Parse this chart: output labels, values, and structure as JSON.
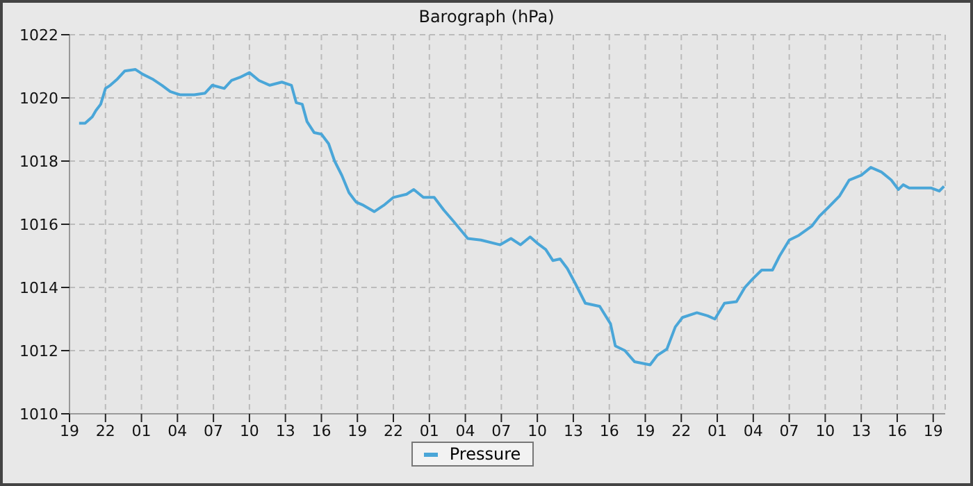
{
  "chart_data": {
    "type": "line",
    "title": "Barograph (hPa)",
    "x": [
      "--01-01T19:48",
      "--01-01T20:18",
      "--01-01T20:54",
      "--01-01T21:12",
      "--01-01T21:36",
      "--01-01T22:00",
      "--01-01T22:24",
      "--01-01T23:00",
      "--01-01T23:36",
      "--01-02T00:30",
      "--01-02T01:06",
      "--01-02T01:54",
      "--01-02T02:42",
      "--01-02T03:24",
      "--01-02T04:12",
      "--01-02T05:24",
      "--01-02T06:18",
      "--01-02T06:54",
      "--01-02T07:54",
      "--01-02T08:30",
      "--01-02T09:12",
      "--01-02T10:00",
      "--01-02T10:48",
      "--01-02T11:42",
      "--01-02T12:42",
      "--01-02T13:30",
      "--01-02T13:54",
      "--01-02T14:24",
      "--01-02T14:48",
      "--01-02T15:24",
      "--01-02T16:00",
      "--01-02T16:36",
      "--01-02T17:06",
      "--01-02T17:42",
      "--01-02T18:18",
      "--01-02T18:54",
      "--01-02T19:30",
      "--01-02T20:24",
      "--01-02T21:12",
      "--01-02T22:00",
      "--01-02T23:06",
      "--01-02T23:42",
      "--01-03T00:30",
      "--01-03T01:24",
      "--01-03T02:12",
      "--01-03T03:00",
      "--01-03T04:12",
      "--01-03T05:18",
      "--01-03T06:54",
      "--01-03T07:48",
      "--01-03T08:36",
      "--01-03T09:24",
      "--01-03T10:00",
      "--01-03T10:42",
      "--01-03T11:18",
      "--01-03T11:54",
      "--01-03T12:30",
      "--01-03T13:12",
      "--01-03T14:00",
      "--01-03T15:12",
      "--01-03T16:06",
      "--01-03T16:30",
      "--01-03T17:18",
      "--01-03T18:06",
      "--01-03T19:24",
      "--01-03T20:00",
      "--01-03T20:48",
      "--01-03T21:30",
      "--01-03T22:06",
      "--01-03T23:18",
      "--01-04T00:12",
      "--01-04T00:48",
      "--01-04T01:36",
      "--01-04T02:36",
      "--01-04T03:18",
      "--01-04T03:54",
      "--01-04T04:42",
      "--01-04T05:36",
      "--01-04T06:12",
      "--01-04T07:00",
      "--01-04T07:48",
      "--01-04T08:54",
      "--01-04T09:30",
      "--01-04T10:18",
      "--01-04T11:12",
      "--01-04T12:00",
      "--01-04T13:00",
      "--01-04T13:48",
      "--01-04T14:42",
      "--01-04T15:30",
      "--01-04T16:06",
      "--01-04T16:30",
      "--01-04T17:00",
      "--01-04T18:48",
      "--01-04T19:30",
      "--01-04T19:54"
    ],
    "series": [
      {
        "name": "Pressure",
        "color": "#4aa6d8",
        "values": [
          1019.2,
          1019.2,
          1019.4,
          1019.6,
          1019.8,
          1020.3,
          1020.4,
          1020.6,
          1020.85,
          1020.9,
          1020.75,
          1020.6,
          1020.4,
          1020.2,
          1020.1,
          1020.1,
          1020.15,
          1020.4,
          1020.3,
          1020.55,
          1020.65,
          1020.8,
          1020.55,
          1020.4,
          1020.5,
          1020.4,
          1019.85,
          1019.8,
          1019.25,
          1018.9,
          1018.85,
          1018.55,
          1018.0,
          1017.55,
          1017.0,
          1016.7,
          1016.6,
          1016.4,
          1016.6,
          1016.85,
          1016.95,
          1017.1,
          1016.85,
          1016.85,
          1016.45,
          1016.1,
          1015.55,
          1015.5,
          1015.35,
          1015.55,
          1015.35,
          1015.6,
          1015.4,
          1015.2,
          1014.85,
          1014.9,
          1014.6,
          1014.1,
          1013.5,
          1013.4,
          1012.85,
          1012.15,
          1012.0,
          1011.65,
          1011.55,
          1011.85,
          1012.05,
          1012.75,
          1013.05,
          1013.2,
          1013.1,
          1013.0,
          1013.5,
          1013.55,
          1014.0,
          1014.25,
          1014.55,
          1014.55,
          1015.0,
          1015.5,
          1015.65,
          1015.95,
          1016.25,
          1016.55,
          1016.9,
          1017.4,
          1017.55,
          1017.8,
          1017.65,
          1017.4,
          1017.1,
          1017.25,
          1017.15,
          1017.15,
          1017.05,
          1017.2
        ]
      }
    ],
    "xlim": [
      "--01-01T19:00",
      "--01-04T20:00"
    ],
    "xticks": [
      {
        "value": "--01-01T19:00",
        "label": "19"
      },
      {
        "value": "--01-01T22:00",
        "label": "22"
      },
      {
        "value": "--01-02T01:00",
        "label": "01"
      },
      {
        "value": "--01-02T04:00",
        "label": "04"
      },
      {
        "value": "--01-02T07:00",
        "label": "07"
      },
      {
        "value": "--01-02T10:00",
        "label": "10"
      },
      {
        "value": "--01-02T13:00",
        "label": "13"
      },
      {
        "value": "--01-02T16:00",
        "label": "16"
      },
      {
        "value": "--01-02T19:00",
        "label": "19"
      },
      {
        "value": "--01-02T22:00",
        "label": "22"
      },
      {
        "value": "--01-03T01:00",
        "label": "01"
      },
      {
        "value": "--01-03T04:00",
        "label": "04"
      },
      {
        "value": "--01-03T07:00",
        "label": "07"
      },
      {
        "value": "--01-03T10:00",
        "label": "10"
      },
      {
        "value": "--01-03T13:00",
        "label": "13"
      },
      {
        "value": "--01-03T16:00",
        "label": "16"
      },
      {
        "value": "--01-03T19:00",
        "label": "19"
      },
      {
        "value": "--01-03T22:00",
        "label": "22"
      },
      {
        "value": "--01-04T01:00",
        "label": "01"
      },
      {
        "value": "--01-04T04:00",
        "label": "04"
      },
      {
        "value": "--01-04T07:00",
        "label": "07"
      },
      {
        "value": "--01-04T10:00",
        "label": "10"
      },
      {
        "value": "--01-04T13:00",
        "label": "13"
      },
      {
        "value": "--01-04T16:00",
        "label": "16"
      },
      {
        "value": "--01-04T19:00",
        "label": "19"
      }
    ],
    "ylim": [
      1010,
      1022
    ],
    "yticks": [
      1010,
      1012,
      1014,
      1016,
      1018,
      1020,
      1022
    ],
    "grid": true,
    "legend": "bottom",
    "marker": "none",
    "line_style": "solid"
  }
}
